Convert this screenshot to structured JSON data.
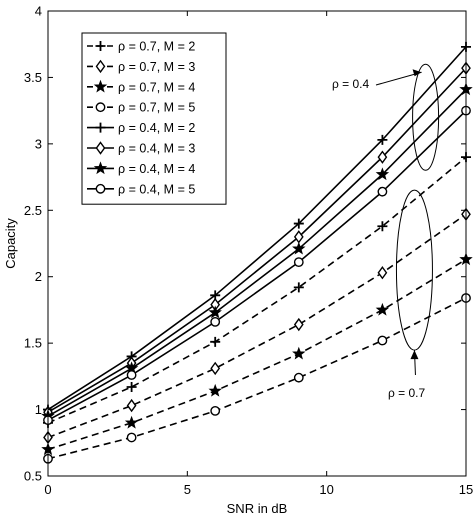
{
  "chart_data": {
    "type": "line",
    "xlabel": "SNR in dB",
    "ylabel": "Capacity",
    "xlim": [
      0,
      15
    ],
    "ylim": [
      0.5,
      4
    ],
    "xticks": [
      0,
      5,
      10,
      15
    ],
    "yticks": [
      0.5,
      1,
      1.5,
      2,
      2.5,
      3,
      3.5,
      4
    ],
    "x": [
      0,
      3,
      6,
      9,
      12,
      15
    ],
    "grid": false,
    "legend_position": "top-left",
    "series": [
      {
        "name": "ρ = 0.7, M = 2",
        "values": [
          0.9,
          1.17,
          1.51,
          1.92,
          2.38,
          2.9
        ],
        "marker": "plus",
        "dash": true
      },
      {
        "name": "ρ = 0.7, M = 3",
        "values": [
          0.79,
          1.03,
          1.31,
          1.64,
          2.03,
          2.47
        ],
        "marker": "diamond",
        "dash": true
      },
      {
        "name": "ρ = 0.7, M = 4",
        "values": [
          0.7,
          0.9,
          1.14,
          1.42,
          1.75,
          2.13
        ],
        "marker": "star",
        "dash": true
      },
      {
        "name": "ρ = 0.7, M = 5",
        "values": [
          0.63,
          0.79,
          0.99,
          1.24,
          1.52,
          1.84
        ],
        "marker": "circle",
        "dash": true
      },
      {
        "name": "ρ = 0.4, M = 2",
        "values": [
          1.0,
          1.4,
          1.86,
          2.4,
          3.03,
          3.73
        ],
        "marker": "plus",
        "dash": false
      },
      {
        "name": "ρ = 0.4, M = 3",
        "values": [
          0.98,
          1.35,
          1.79,
          2.3,
          2.9,
          3.57
        ],
        "marker": "diamond",
        "dash": false
      },
      {
        "name": "ρ = 0.4, M = 4",
        "values": [
          0.95,
          1.31,
          1.73,
          2.21,
          2.77,
          3.41
        ],
        "marker": "star",
        "dash": false
      },
      {
        "name": "ρ = 0.4, M = 5",
        "values": [
          0.92,
          1.26,
          1.66,
          2.11,
          2.64,
          3.25
        ],
        "marker": "circle",
        "dash": false
      }
    ],
    "annotations": [
      {
        "id": "rho04",
        "text": "ρ = 0.4"
      },
      {
        "id": "rho07",
        "text": "ρ = 0.7"
      }
    ]
  }
}
